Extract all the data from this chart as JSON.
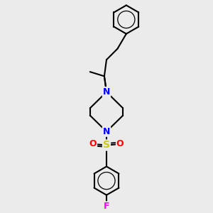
{
  "background_color": "#ebebeb",
  "atom_colors": {
    "C": "#000000",
    "N": "#0000ff",
    "S": "#cccc00",
    "O": "#ff0000",
    "F": "#ff00ff"
  },
  "bond_color": "#000000",
  "bond_width": 1.5,
  "fig_size": [
    3.0,
    3.0
  ],
  "dpi": 100,
  "xlim": [
    -2.5,
    2.5
  ],
  "ylim": [
    -4.5,
    4.8
  ]
}
